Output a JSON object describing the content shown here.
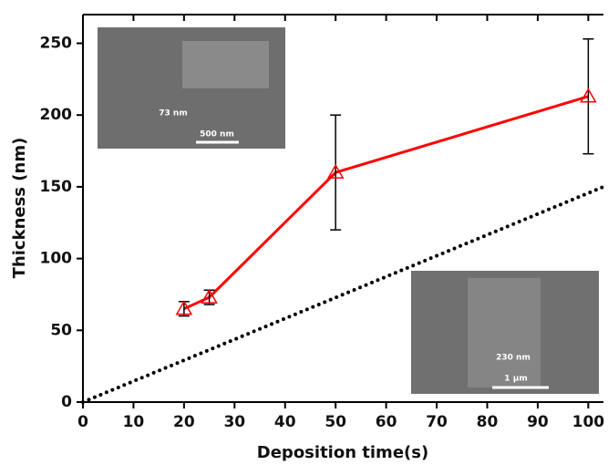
{
  "chart_data": {
    "type": "line",
    "x_label": "Deposition time(s)",
    "y_label": "Thickness (nm)",
    "xlim": [
      0,
      103
    ],
    "ylim": [
      0,
      270
    ],
    "xticks": [
      0,
      10,
      20,
      30,
      40,
      50,
      60,
      70,
      80,
      90,
      100
    ],
    "yticks": [
      0,
      50,
      100,
      150,
      200,
      250
    ],
    "series": [
      {
        "x": [
          20,
          25,
          50,
          100
        ],
        "values": [
          65,
          73,
          160,
          213
        ],
        "errors": [
          5,
          5,
          40,
          40
        ],
        "color": "#ff0000",
        "marker": "open-triangle"
      },
      {
        "x": [
          0,
          103
        ],
        "values": [
          0,
          150
        ],
        "color": "#000000",
        "style": "dotted"
      }
    ],
    "insets": [
      {
        "label": "73 nm",
        "scale": "500 nm"
      },
      {
        "label": "230 nm",
        "scale": "1 µm"
      }
    ]
  }
}
